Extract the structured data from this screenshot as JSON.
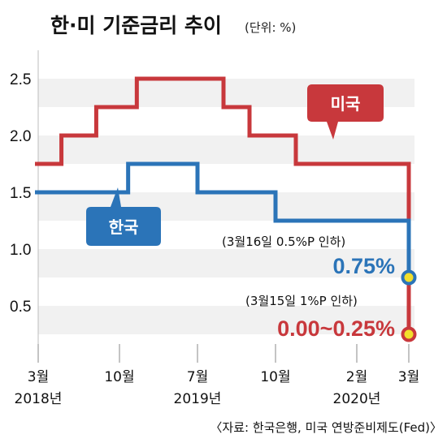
{
  "header": {
    "title": "한·미 기준금리 추이",
    "unit": "(단위: %)"
  },
  "colors": {
    "us": "#c8383c",
    "korea": "#2b74b8",
    "band": "#f1f1f1",
    "marker": "#f2df2c"
  },
  "chart_data": {
    "type": "line",
    "step": true,
    "title": "한·미 기준금리 추이",
    "unit": "(단위: %)",
    "ylim": [
      0,
      2.75
    ],
    "yticks": [
      "0.5",
      "1.0",
      "1.5",
      "2.0",
      "2.5"
    ],
    "ytick_values": [
      0.5,
      1.0,
      1.5,
      2.0,
      2.5
    ],
    "xlim": [
      "2018-03",
      "2020-03"
    ],
    "xticks": [
      {
        "line1": "3월",
        "line2": "2018년",
        "date": "2018-03"
      },
      {
        "line1": "10월",
        "line2": "",
        "date": "2018-10"
      },
      {
        "line1": "7월",
        "line2": "2019년",
        "date": "2019-07"
      },
      {
        "line1": "10월",
        "line2": "",
        "date": "2019-10"
      },
      {
        "line1": "2월",
        "line2": "2020년",
        "date": "2020-02"
      },
      {
        "line1": "3월",
        "line2": "",
        "date": "2020-03"
      }
    ],
    "series": [
      {
        "name": "미국",
        "color": "#c8383c",
        "points": [
          [
            "2018-03",
            1.75
          ],
          [
            "2018-05",
            2.0
          ],
          [
            "2018-08",
            2.25
          ],
          [
            "2018-12",
            2.5
          ],
          [
            "2019-08",
            2.25
          ],
          [
            "2019-09",
            2.0
          ],
          [
            "2019-11",
            1.75
          ],
          [
            "2020-03",
            1.25
          ],
          [
            "2020-03",
            0.25
          ]
        ]
      },
      {
        "name": "한국",
        "color": "#2b74b8",
        "points": [
          [
            "2018-03",
            1.5
          ],
          [
            "2018-11",
            1.75
          ],
          [
            "2019-07",
            1.5
          ],
          [
            "2019-10",
            1.25
          ],
          [
            "2020-03",
            1.25
          ],
          [
            "2020-03",
            0.75
          ]
        ]
      }
    ],
    "annotations": {
      "korea_note": "(3월16일 0.5%P 인하)",
      "korea_value": "0.75%",
      "us_note": "(3월15일 1%P 인하)",
      "us_value": "0.00~0.25%"
    }
  },
  "source": "〈자료: 한국은행, 미국 연방준비제도(Fed)〉"
}
